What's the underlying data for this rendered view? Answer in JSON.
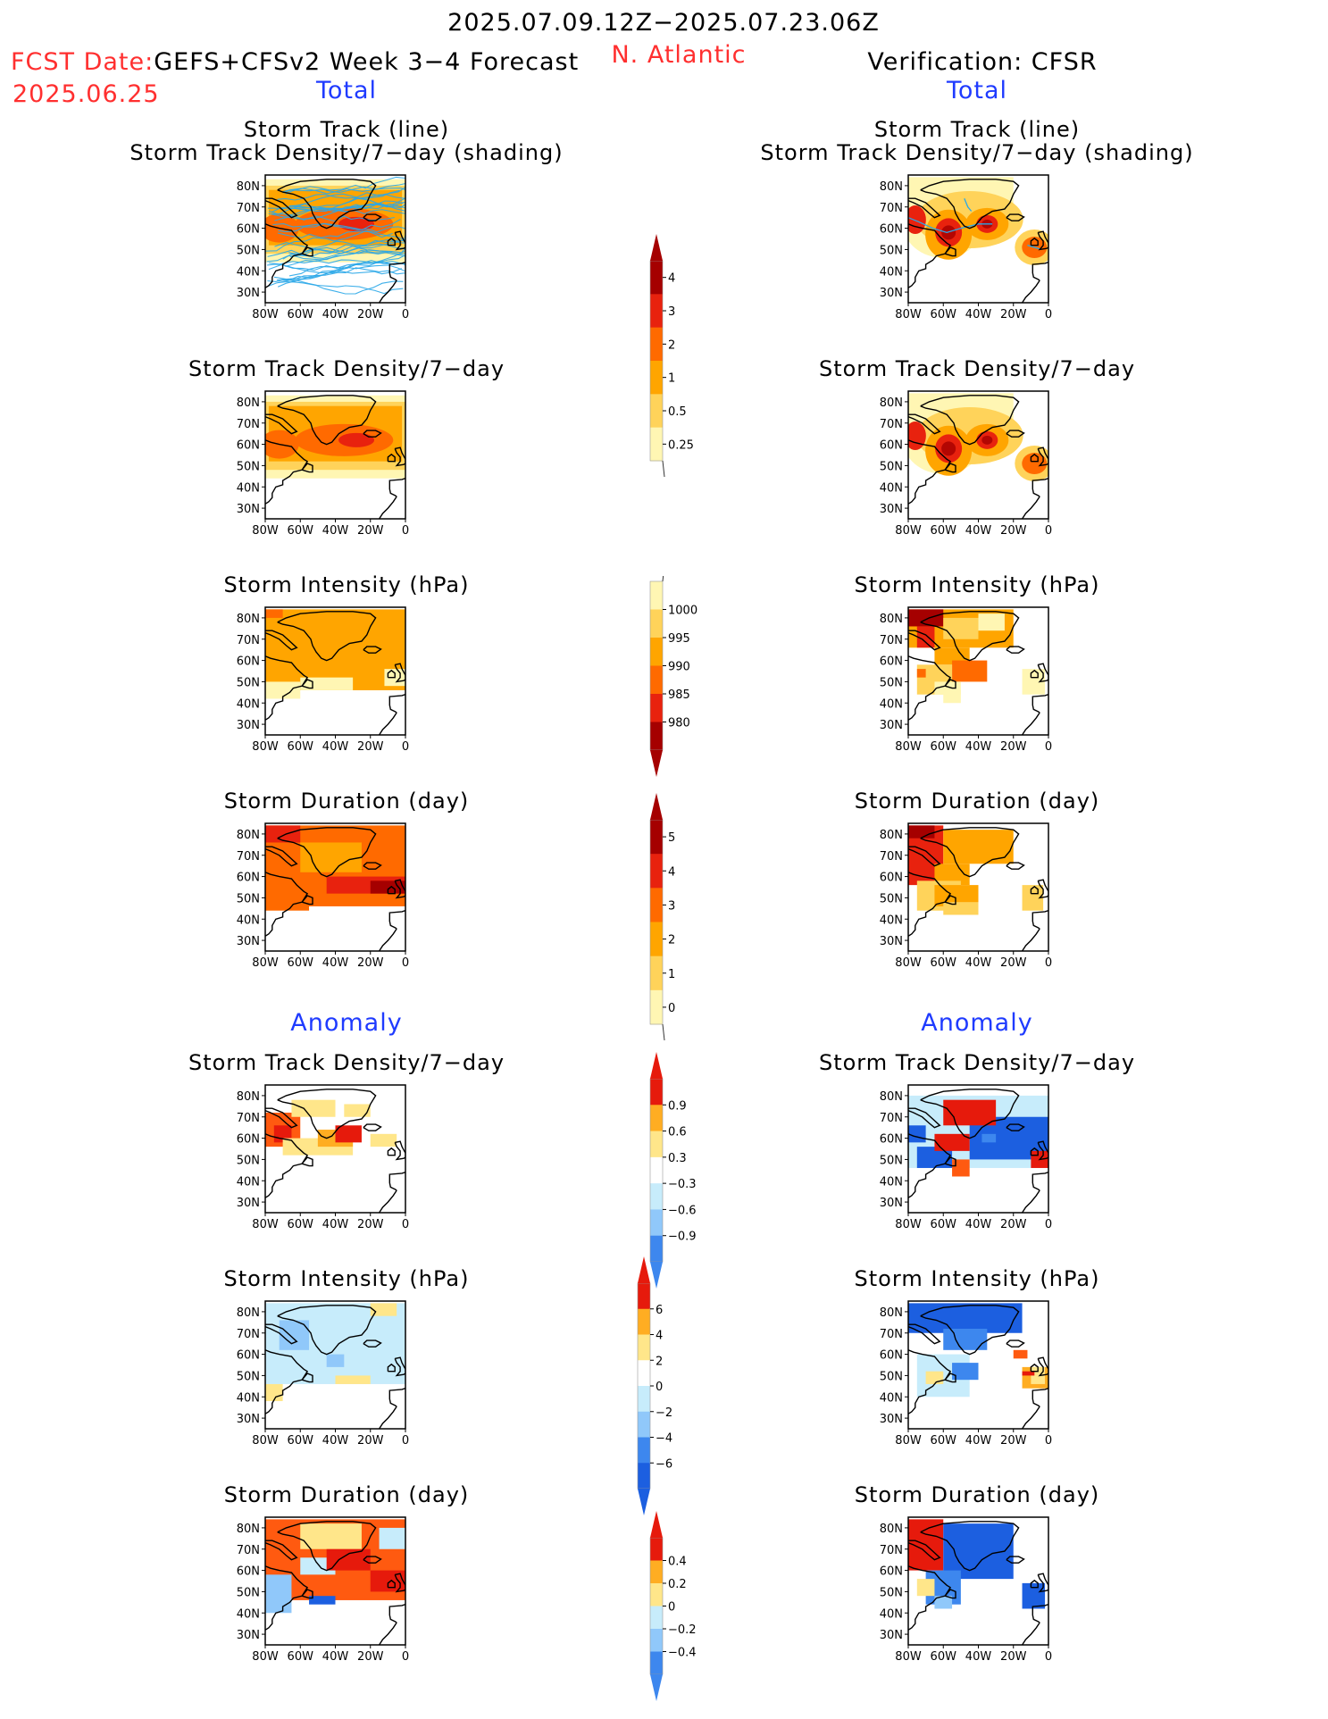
{
  "header": {
    "date_range": "2025.07.09.12Z−2025.07.23.06Z",
    "fcst_label": "FCST Date:",
    "fcst_model": "GEFS+CFSv2 Week 3−4 Forecast",
    "fcst_date": "2025.06.25",
    "region": "N. Atlantic",
    "verification": "Verification: CFSR",
    "total_left": "Total",
    "total_right": "Total",
    "anomaly_left": "Anomaly",
    "anomaly_right": "Anomaly"
  },
  "panel_titles": {
    "track_line": "Storm Track (line)",
    "track_density_shading": "Storm Track Density/7−day (shading)",
    "track_density": "Storm Track Density/7−day",
    "intensity": "Storm Intensity (hPa)",
    "duration": "Storm Duration (day)"
  },
  "axes": {
    "lat_ticks": [
      "80N",
      "70N",
      "60N",
      "50N",
      "40N",
      "30N"
    ],
    "lon_ticks": [
      "80W",
      "60W",
      "40W",
      "20W",
      "0"
    ]
  },
  "colors": {
    "seq": [
      "#fff6b3",
      "#ffd35a",
      "#ffa500",
      "#ff6a00",
      "#e8220e",
      "#a50000"
    ],
    "div": [
      "#1c5fe0",
      "#3d87ee",
      "#90c8fa",
      "#c7ecfb",
      "#ffffff",
      "#ffe68a",
      "#ffad22",
      "#ff5a10",
      "#e61a0c"
    ],
    "land_line": "#000000",
    "track_line": "#2aa7e8"
  },
  "colorbars": [
    {
      "id": "cb-density",
      "labels": [
        "4",
        "3",
        "2",
        "1",
        "0.5",
        "0.25"
      ],
      "colors": [
        "#a50000",
        "#e8220e",
        "#ff6a00",
        "#ffa500",
        "#ffd35a",
        "#fff6b3"
      ],
      "triangle": "top"
    },
    {
      "id": "cb-intensity",
      "labels": [
        "1000",
        "995",
        "990",
        "985",
        "980"
      ],
      "colors": [
        "#fff6b3",
        "#ffd35a",
        "#ffa500",
        "#ff6a00",
        "#e8220e",
        "#a50000"
      ],
      "triangle": "bottom"
    },
    {
      "id": "cb-duration",
      "labels": [
        "5",
        "4",
        "3",
        "2",
        "1",
        "0"
      ],
      "colors": [
        "#a50000",
        "#e8220e",
        "#ff6a00",
        "#ffa500",
        "#ffd35a",
        "#fff6b3"
      ],
      "triangle": "top"
    },
    {
      "id": "cb-anom-density",
      "labels": [
        "0.9",
        "0.6",
        "0.3",
        "−0.3",
        "−0.6",
        "−0.9"
      ],
      "colors": [
        "#e61a0c",
        "#ffad22",
        "#ffe68a",
        "#ffffff",
        "#c7ecfb",
        "#90c8fa",
        "#3d87ee"
      ],
      "triangle": "both"
    },
    {
      "id": "cb-anom-intensity",
      "labels": [
        "6",
        "4",
        "2",
        "0",
        "−2",
        "−4",
        "−6"
      ],
      "colors": [
        "#e61a0c",
        "#ffad22",
        "#ffe68a",
        "#ffffff",
        "#c7ecfb",
        "#90c8fa",
        "#3d87ee",
        "#1c5fe0"
      ],
      "triangle": "both"
    },
    {
      "id": "cb-anom-duration",
      "labels": [
        "0.4",
        "0.2",
        "0",
        "−0.2",
        "−0.4"
      ],
      "colors": [
        "#e61a0c",
        "#ffad22",
        "#ffe68a",
        "#c7ecfb",
        "#90c8fa",
        "#3d87ee"
      ],
      "triangle": "both"
    }
  ],
  "chart_data": [
    {
      "type": "heatmap",
      "panel": "forecast-total-track-density-with-tracks",
      "title": "Storm Track (line) / Storm Track Density/7−day (shading)",
      "x_range": [
        "80W",
        "0"
      ],
      "y_range": [
        "25N",
        "85N"
      ],
      "peak_regions": [
        {
          "lat": 62,
          "lon": -78,
          "level": "3−4"
        },
        {
          "lat": 62,
          "lon": -30,
          "level": "3−4"
        }
      ]
    },
    {
      "type": "heatmap",
      "panel": "verification-total-track-density-with-tracks",
      "title": "Storm Track (line) / Storm Track Density/7−day (shading)",
      "peak_regions": [
        {
          "lat": 58,
          "lon": -57,
          "level": "3−4"
        },
        {
          "lat": 62,
          "lon": -35,
          "level": "3−4"
        },
        {
          "lat": 51,
          "lon": -8,
          "level": "2−3"
        }
      ]
    },
    {
      "type": "heatmap",
      "panel": "forecast-total-track-density",
      "title": "Storm Track Density/7−day",
      "peak_regions": [
        {
          "lat": 62,
          "lon": -28,
          "level": "3−4"
        }
      ]
    },
    {
      "type": "heatmap",
      "panel": "verification-total-track-density",
      "title": "Storm Track Density/7−day",
      "peak_regions": [
        {
          "lat": 58,
          "lon": -57,
          "level": "3−4"
        },
        {
          "lat": 62,
          "lon": -35,
          "level": "3−4"
        },
        {
          "lat": 51,
          "lon": -8,
          "level": "2−3"
        }
      ]
    },
    {
      "type": "heatmap",
      "panel": "forecast-total-intensity",
      "title": "Storm Intensity (hPa)",
      "dominant_range_hPa": "990−995"
    },
    {
      "type": "heatmap",
      "panel": "verification-total-intensity",
      "title": "Storm Intensity (hPa)",
      "dominant_range_hPa": "980−995"
    },
    {
      "type": "heatmap",
      "panel": "forecast-total-duration",
      "title": "Storm Duration (day)",
      "dominant_range_days": "3−5"
    },
    {
      "type": "heatmap",
      "panel": "verification-total-duration",
      "title": "Storm Duration (day)",
      "dominant_range_days": "1−5"
    },
    {
      "type": "heatmap",
      "panel": "forecast-anomaly-track-density",
      "title": "Storm Track Density/7−day"
    },
    {
      "type": "heatmap",
      "panel": "verification-anomaly-track-density",
      "title": "Storm Track Density/7−day"
    },
    {
      "type": "heatmap",
      "panel": "forecast-anomaly-intensity",
      "title": "Storm Intensity (hPa)"
    },
    {
      "type": "heatmap",
      "panel": "verification-anomaly-intensity",
      "title": "Storm Intensity (hPa)"
    },
    {
      "type": "heatmap",
      "panel": "forecast-anomaly-duration",
      "title": "Storm Duration (day)"
    },
    {
      "type": "heatmap",
      "panel": "verification-anomaly-duration",
      "title": "Storm Duration (day)"
    }
  ]
}
